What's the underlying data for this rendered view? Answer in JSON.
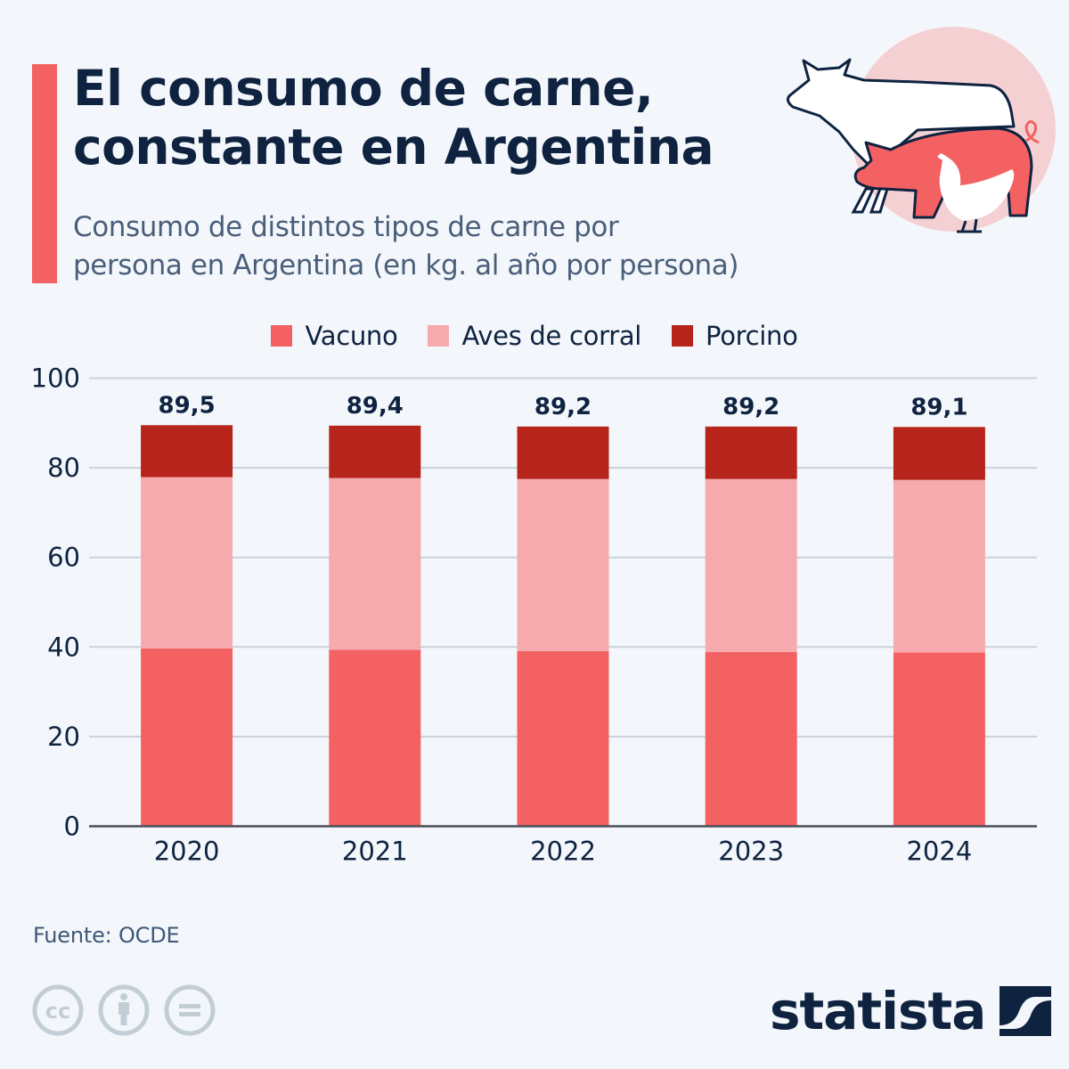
{
  "header": {
    "title_line1": "El consumo de carne,",
    "title_line2": "constante en Argentina",
    "subtitle_line1": "Consumo de distintos tipos de carne por",
    "subtitle_line2": "persona en Argentina (en kg. al año por persona)",
    "illustration": "cow-pig-chicken-icon"
  },
  "colors": {
    "accent": "#f46163",
    "vacuno": "#f46163",
    "aves": "#f6aaae",
    "porcino": "#b7241b",
    "text_dark": "#0f2340",
    "grid": "#c9d2dc",
    "circle_bg": "#f5d0d3"
  },
  "legend": [
    {
      "label": "Vacuno",
      "color": "#f46163"
    },
    {
      "label": "Aves de corral",
      "color": "#f6aaae"
    },
    {
      "label": "Porcino",
      "color": "#b7241b"
    }
  ],
  "chart_data": {
    "type": "bar",
    "stacked": true,
    "title": "El consumo de carne, constante en Argentina",
    "subtitle": "Consumo de distintos tipos de carne por persona en Argentina (en kg. al año por persona)",
    "xlabel": "",
    "ylabel": "",
    "categories": [
      "2020",
      "2021",
      "2022",
      "2023",
      "2024"
    ],
    "series": [
      {
        "name": "Vacuno",
        "color": "#f46163",
        "values": [
          39.7,
          39.4,
          39.1,
          38.9,
          38.8
        ]
      },
      {
        "name": "Aves de corral",
        "color": "#f6aaae",
        "values": [
          38.2,
          38.3,
          38.4,
          38.6,
          38.5
        ]
      },
      {
        "name": "Porcino",
        "color": "#b7241b",
        "values": [
          11.6,
          11.7,
          11.7,
          11.7,
          11.8
        ]
      }
    ],
    "totals": [
      "89,5",
      "89,4",
      "89,2",
      "89,2",
      "89,1"
    ],
    "ylim": [
      0,
      100
    ],
    "yticks": [
      0,
      20,
      40,
      60,
      80,
      100
    ],
    "grid": true,
    "legend_position": "top-center"
  },
  "footer": {
    "source": "Fuente: OCDE",
    "license_icons": [
      "cc-icon",
      "attribution-icon",
      "no-derivatives-icon"
    ],
    "brand": "statista"
  }
}
